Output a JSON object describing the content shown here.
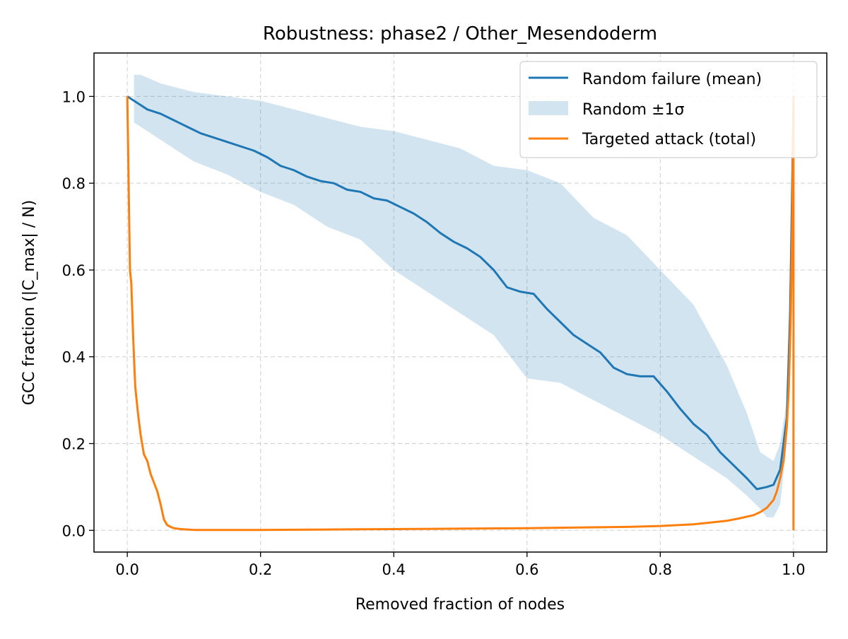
{
  "chart_data": {
    "type": "line",
    "title": "Robustness: phase2 / Other_Mesendoderm",
    "xlabel": "Removed fraction of nodes",
    "ylabel": "GCC fraction (|C_max| / N)",
    "xlim": [
      -0.05,
      1.05
    ],
    "ylim": [
      -0.05,
      1.1
    ],
    "x_ticks": [
      0.0,
      0.2,
      0.4,
      0.6,
      0.8,
      1.0
    ],
    "x_tick_labels": [
      "0.0",
      "0.2",
      "0.4",
      "0.6",
      "0.8",
      "1.0"
    ],
    "y_ticks": [
      0.0,
      0.2,
      0.4,
      0.6,
      0.8,
      1.0
    ],
    "y_tick_labels": [
      "0.0",
      "0.2",
      "0.4",
      "0.6",
      "0.8",
      "1.0"
    ],
    "grid": true,
    "legend_position": "top-right",
    "series": [
      {
        "name": "Random failure (mean)",
        "color": "#1f77b4",
        "x": [
          0.0,
          0.01,
          0.02,
          0.03,
          0.05,
          0.07,
          0.09,
          0.11,
          0.13,
          0.15,
          0.17,
          0.19,
          0.21,
          0.23,
          0.25,
          0.27,
          0.29,
          0.31,
          0.33,
          0.35,
          0.37,
          0.39,
          0.41,
          0.43,
          0.45,
          0.47,
          0.49,
          0.51,
          0.53,
          0.55,
          0.57,
          0.59,
          0.61,
          0.63,
          0.65,
          0.67,
          0.69,
          0.71,
          0.73,
          0.75,
          0.77,
          0.79,
          0.81,
          0.83,
          0.85,
          0.87,
          0.89,
          0.91,
          0.93,
          0.945,
          0.96,
          0.97,
          0.98,
          0.99,
          0.995,
          1.0
        ],
        "y": [
          1.0,
          0.99,
          0.98,
          0.97,
          0.96,
          0.945,
          0.93,
          0.915,
          0.905,
          0.895,
          0.885,
          0.875,
          0.86,
          0.84,
          0.83,
          0.815,
          0.805,
          0.8,
          0.785,
          0.78,
          0.765,
          0.76,
          0.745,
          0.73,
          0.71,
          0.685,
          0.665,
          0.65,
          0.63,
          0.6,
          0.56,
          0.55,
          0.545,
          0.51,
          0.48,
          0.45,
          0.43,
          0.41,
          0.375,
          0.36,
          0.355,
          0.355,
          0.32,
          0.28,
          0.245,
          0.22,
          0.18,
          0.15,
          0.12,
          0.095,
          0.1,
          0.105,
          0.14,
          0.26,
          0.5,
          0.98
        ]
      },
      {
        "name": "Targeted attack (total)",
        "color": "#ff7f0e",
        "x": [
          0.0,
          0.002,
          0.004,
          0.006,
          0.008,
          0.01,
          0.012,
          0.014,
          0.016,
          0.02,
          0.025,
          0.03,
          0.035,
          0.04,
          0.045,
          0.05,
          0.055,
          0.06,
          0.065,
          0.07,
          0.08,
          0.09,
          0.1,
          0.15,
          0.2,
          0.3,
          0.4,
          0.5,
          0.6,
          0.7,
          0.75,
          0.8,
          0.85,
          0.9,
          0.92,
          0.94,
          0.95,
          0.96,
          0.97,
          0.975,
          0.98,
          0.985,
          0.99,
          0.993,
          0.996,
          0.998,
          0.999,
          1.0,
          1.0
        ],
        "y": [
          1.0,
          0.8,
          0.6,
          0.57,
          0.48,
          0.4,
          0.33,
          0.3,
          0.27,
          0.22,
          0.175,
          0.16,
          0.13,
          0.11,
          0.09,
          0.06,
          0.025,
          0.012,
          0.008,
          0.005,
          0.003,
          0.002,
          0.001,
          0.001,
          0.001,
          0.002,
          0.003,
          0.004,
          0.005,
          0.007,
          0.008,
          0.01,
          0.014,
          0.022,
          0.028,
          0.035,
          0.042,
          0.052,
          0.07,
          0.09,
          0.12,
          0.16,
          0.24,
          0.33,
          0.5,
          0.7,
          0.85,
          1.0,
          0.0
        ]
      }
    ],
    "band": {
      "name": "Random ±1σ",
      "color": "#1f77b4",
      "opacity": 0.2,
      "x": [
        0.01,
        0.02,
        0.05,
        0.1,
        0.15,
        0.2,
        0.25,
        0.3,
        0.35,
        0.4,
        0.45,
        0.5,
        0.55,
        0.6,
        0.65,
        0.7,
        0.75,
        0.8,
        0.85,
        0.9,
        0.93,
        0.95,
        0.96,
        0.97,
        0.98,
        0.99,
        1.0
      ],
      "upper": [
        1.05,
        1.05,
        1.03,
        1.01,
        1.0,
        0.99,
        0.97,
        0.95,
        0.93,
        0.92,
        0.9,
        0.88,
        0.84,
        0.83,
        0.8,
        0.72,
        0.68,
        0.6,
        0.52,
        0.38,
        0.27,
        0.18,
        0.17,
        0.16,
        0.2,
        0.3,
        0.95
      ],
      "lower": [
        0.94,
        0.93,
        0.9,
        0.85,
        0.82,
        0.78,
        0.75,
        0.7,
        0.67,
        0.6,
        0.55,
        0.5,
        0.45,
        0.35,
        0.34,
        0.3,
        0.26,
        0.22,
        0.17,
        0.12,
        0.08,
        0.05,
        0.03,
        0.03,
        0.06,
        0.2,
        0.9
      ]
    }
  }
}
